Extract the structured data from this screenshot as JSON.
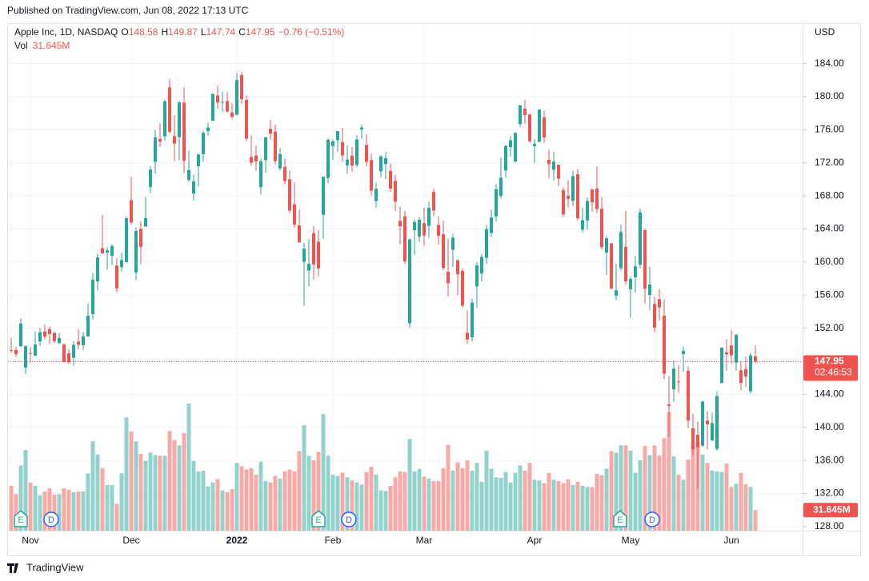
{
  "chart_data": {
    "type": "candlestick",
    "published": "Published on TradingView.com, Jun 08, 2022 17:13 UTC",
    "title": "Apple Inc, 1D, NASDAQ",
    "open_label": "O",
    "high_label": "H",
    "low_label": "L",
    "close_label": "C",
    "change_label": "−0.76 (−0.51%)",
    "volume_label": "Vol",
    "volume_value_label": "31.645M",
    "currency": "USD",
    "countdown": "02:46:53",
    "brand": "TradingView",
    "events": [
      "E",
      "D",
      "E",
      "D",
      "E",
      "D"
    ],
    "up_color": "#26a69a",
    "down_color": "#ef5350",
    "up_volume_color": "#92d2cc",
    "down_volume_color": "#f7a9a7",
    "grid": true,
    "ylim": [
      127.5,
      188.8
    ],
    "yticks": [
      {
        "value": 128,
        "label": "128.00"
      },
      {
        "value": 132,
        "label": "132.00"
      },
      {
        "value": 136,
        "label": "136.00"
      },
      {
        "value": 140,
        "label": "140.00"
      },
      {
        "value": 144,
        "label": "144.00"
      },
      {
        "value": 148,
        "label": "148.00"
      },
      {
        "value": 152,
        "label": "152.00"
      },
      {
        "value": 156,
        "label": "156.00"
      },
      {
        "value": 160,
        "label": "160.00"
      },
      {
        "value": 164,
        "label": "164.00"
      },
      {
        "value": 168,
        "label": "168.00"
      },
      {
        "value": 172,
        "label": "172.00"
      },
      {
        "value": 176,
        "label": "176.00"
      },
      {
        "value": 180,
        "label": "180.00"
      },
      {
        "value": 184,
        "label": "184.00"
      }
    ],
    "categories": [
      null,
      null,
      null,
      null,
      "Nov",
      null,
      null,
      null,
      null,
      null,
      null,
      null,
      null,
      null,
      null,
      null,
      null,
      null,
      null,
      null,
      null,
      null,
      null,
      null,
      null,
      "Dec",
      null,
      null,
      null,
      null,
      null,
      null,
      null,
      null,
      null,
      null,
      null,
      null,
      null,
      null,
      null,
      null,
      null,
      null,
      null,
      null,
      null,
      "2022",
      null,
      null,
      null,
      null,
      null,
      null,
      null,
      null,
      null,
      null,
      null,
      null,
      null,
      null,
      null,
      null,
      null,
      null,
      null,
      "Feb",
      null,
      null,
      null,
      null,
      null,
      null,
      null,
      null,
      null,
      null,
      null,
      null,
      null,
      null,
      null,
      null,
      null,
      null,
      "Mar",
      null,
      null,
      null,
      null,
      null,
      null,
      null,
      null,
      null,
      null,
      null,
      null,
      null,
      null,
      null,
      null,
      null,
      null,
      null,
      null,
      null,
      null,
      "Apr",
      null,
      null,
      null,
      null,
      null,
      null,
      null,
      null,
      null,
      null,
      null,
      null,
      null,
      null,
      null,
      null,
      null,
      null,
      null,
      "May",
      null,
      null,
      null,
      null,
      null,
      null,
      null,
      null,
      null,
      null,
      null,
      null,
      null,
      null,
      null,
      null,
      null,
      null,
      null,
      null,
      "Jun",
      null,
      null,
      null,
      null,
      null
    ],
    "open": [
      149.33,
      149.36,
      149.82,
      147.22,
      148.99,
      148.66,
      150.39,
      151.58,
      151.89,
      151.41,
      150.2,
      150.02,
      148.96,
      148.43,
      150.37,
      149.94,
      151.0,
      153.71,
      157.65,
      161.68,
      161.12,
      160.75,
      159.57,
      159.37,
      159.99,
      167.48,
      158.74,
      164.02,
      164.29,
      169.08,
      172.13,
      174.91,
      175.21,
      181.12,
      175.25,
      175.11,
      179.28,
      169.93,
      168.28,
      171.56,
      173.04,
      175.85,
      177.09,
      180.16,
      179.33,
      179.47,
      178.09,
      177.83,
      182.63,
      179.61,
      172.7,
      172.89,
      169.08,
      172.32,
      176.12,
      175.78,
      171.34,
      171.51,
      170.0,
      166.98,
      164.42,
      160.02,
      158.98,
      163.5,
      162.45,
      165.71,
      170.16,
      174.01,
      174.75,
      174.48,
      171.68,
      172.86,
      171.73,
      176.05,
      174.14,
      172.33,
      167.37,
      170.97,
      171.85,
      171.03,
      169.82,
      164.98,
      165.54,
      152.58,
      163.84,
      163.06,
      164.7,
      164.39,
      168.47,
      164.49,
      163.36,
      158.82,
      161.48,
      160.2,
      158.93,
      151.45,
      150.9,
      157.05,
      158.61,
      160.51,
      163.51,
      165.51,
      167.99,
      171.06,
      173.88,
      172.17,
      176.69,
      178.55,
      177.84,
      174.03,
      174.57,
      177.5,
      172.36,
      171.16,
      171.78,
      168.71,
      168.02,
      167.39,
      170.62,
      163.92,
      165.02,
      168.76,
      168.91,
      166.46,
      161.12,
      162.25,
      155.91,
      159.25,
      161.84,
      156.71,
      158.15,
      159.67,
      163.85,
      156.01,
      154.93,
      155.52,
      153.5,
      142.77,
      144.59,
      145.55,
      148.86,
      146.85,
      139.88,
      139.09,
      137.79,
      140.81,
      138.43,
      137.39,
      145.39,
      149.07,
      149.9,
      147.83,
      146.9,
      147.03,
      144.35,
      148.58
    ],
    "high": [
      150.84,
      149.73,
      153.17,
      149.94,
      149.7,
      151.57,
      151.97,
      152.43,
      152.2,
      151.57,
      151.43,
      150.13,
      149.43,
      150.4,
      151.88,
      151.49,
      155.0,
      158.67,
      161.02,
      165.7,
      161.8,
      162.14,
      160.45,
      161.19,
      165.52,
      170.3,
      164.2,
      164.96,
      167.88,
      171.58,
      175.96,
      176.75,
      179.63,
      182.13,
      177.74,
      179.5,
      181.14,
      173.47,
      170.58,
      173.2,
      175.86,
      176.85,
      180.42,
      181.33,
      180.63,
      180.57,
      179.23,
      182.88,
      182.94,
      180.17,
      175.3,
      174.14,
      172.5,
      175.18,
      177.18,
      176.62,
      173.78,
      172.54,
      171.08,
      169.68,
      166.33,
      162.3,
      162.76,
      164.39,
      163.84,
      170.35,
      175.0,
      174.84,
      175.88,
      176.24,
      174.1,
      173.95,
      175.35,
      176.65,
      175.48,
      173.08,
      169.58,
      172.95,
      173.34,
      171.91,
      170.54,
      166.69,
      166.15,
      162.85,
      165.12,
      165.42,
      166.6,
      167.36,
      168.91,
      165.55,
      165.02,
      162.88,
      163.41,
      160.39,
      159.28,
      154.12,
      155.57,
      160.0,
      161.0,
      164.48,
      166.35,
      169.42,
      172.64,
      174.14,
      175.28,
      175.73,
      179.01,
      179.61,
      178.03,
      174.88,
      178.49,
      178.3,
      173.63,
      173.36,
      171.78,
      169.03,
      169.87,
      171.04,
      171.27,
      166.6,
      167.82,
      168.88,
      171.53,
      167.87,
      163.17,
      162.34,
      159.79,
      164.52,
      166.2,
      158.23,
      160.71,
      166.48,
      164.08,
      159.44,
      155.83,
      156.74,
      155.45,
      146.2,
      148.1,
      147.52,
      149.77,
      147.36,
      141.66,
      140.7,
      143.26,
      141.97,
      141.79,
      144.34,
      149.68,
      150.66,
      151.74,
      151.27,
      147.97,
      148.57,
      149.0,
      149.87
    ],
    "low": [
      149.01,
      148.49,
      149.72,
      146.41,
      147.8,
      148.65,
      149.82,
      150.64,
      150.06,
      150.16,
      150.06,
      147.85,
      147.68,
      147.48,
      149.43,
      149.34,
      150.99,
      153.05,
      156.53,
      161.0,
      159.06,
      159.64,
      156.36,
      158.79,
      159.92,
      164.53,
      157.8,
      159.72,
      164.28,
      168.34,
      170.7,
      173.92,
      174.69,
      175.53,
      172.21,
      172.31,
      170.75,
      169.69,
      167.46,
      169.12,
      172.15,
      175.27,
      177.07,
      178.53,
      178.14,
      178.09,
      177.26,
      177.71,
      179.12,
      174.64,
      171.64,
      171.03,
      168.17,
      170.82,
      174.82,
      171.79,
      171.09,
      169.41,
      165.94,
      164.18,
      162.3,
      154.7,
      157.02,
      157.82,
      158.28,
      162.8,
      169.51,
      172.31,
      173.33,
      172.12,
      170.68,
      170.95,
      171.43,
      174.9,
      171.55,
      168.04,
      166.56,
      170.25,
      170.05,
      168.47,
      166.19,
      162.15,
      159.75,
      152.0,
      160.87,
      162.43,
      161.97,
      162.95,
      165.55,
      162.1,
      159.04,
      155.8,
      159.41,
      155.98,
      154.5,
      150.1,
      150.38,
      154.46,
      157.63,
      159.76,
      163.01,
      164.91,
      167.65,
      170.21,
      172.75,
      172.0,
      176.34,
      176.7,
      174.4,
      171.94,
      174.44,
      174.42,
      170.13,
      169.85,
      169.2,
      165.5,
      166.64,
      166.77,
      165.04,
      163.57,
      163.91,
      166.1,
      165.91,
      161.5,
      158.46,
      156.72,
      155.38,
      158.93,
      157.25,
      153.27,
      156.32,
      159.26,
      154.95,
      154.18,
      151.49,
      152.93,
      145.81,
      138.8,
      143.11,
      144.18,
      146.68,
      139.9,
      136.6,
      132.61,
      137.65,
      137.33,
      138.34,
      137.14,
      145.26,
      146.84,
      147.68,
      146.86,
      144.46,
      144.9,
      144.1,
      147.74
    ],
    "close": [
      149.32,
      148.85,
      152.57,
      149.8,
      148.96,
      150.02,
      151.49,
      150.96,
      151.28,
      150.44,
      150.81,
      147.92,
      147.87,
      149.99,
      150.0,
      151.0,
      153.49,
      157.87,
      160.55,
      161.02,
      161.41,
      161.94,
      156.81,
      160.24,
      165.3,
      164.77,
      163.76,
      161.84,
      165.32,
      171.18,
      175.08,
      174.56,
      179.45,
      175.74,
      174.33,
      179.3,
      172.26,
      171.14,
      169.75,
      172.99,
      175.64,
      176.28,
      180.33,
      179.29,
      179.38,
      178.2,
      177.57,
      182.01,
      179.7,
      174.92,
      172.0,
      172.17,
      172.19,
      175.08,
      175.53,
      172.19,
      173.07,
      169.8,
      166.23,
      164.51,
      162.41,
      161.62,
      159.78,
      159.69,
      159.22,
      170.33,
      174.78,
      174.61,
      175.84,
      172.9,
      172.39,
      171.66,
      174.83,
      176.28,
      172.12,
      168.64,
      168.88,
      172.79,
      172.55,
      168.88,
      167.3,
      164.32,
      160.07,
      162.74,
      164.85,
      165.12,
      163.2,
      166.56,
      166.23,
      163.17,
      159.3,
      157.44,
      162.95,
      158.52,
      154.73,
      150.62,
      155.09,
      159.59,
      160.62,
      163.98,
      165.38,
      168.82,
      170.21,
      174.07,
      174.72,
      175.6,
      178.96,
      177.77,
      174.61,
      174.31,
      178.44,
      175.06,
      171.83,
      172.14,
      170.09,
      165.75,
      167.66,
      170.4,
      165.29,
      165.07,
      167.4,
      167.23,
      166.42,
      161.79,
      162.88,
      156.8,
      156.57,
      163.64,
      157.65,
      157.96,
      159.48,
      166.02,
      156.77,
      157.28,
      152.06,
      154.51,
      146.5,
      142.56,
      147.11,
      145.54,
      149.24,
      140.82,
      137.35,
      137.59,
      143.11,
      140.36,
      140.52,
      143.78,
      149.64,
      148.84,
      148.71,
      151.21,
      145.38,
      146.14,
      148.71,
      147.95
    ],
    "volume": [
      69,
      56,
      100,
      124,
      74,
      69,
      54,
      60,
      65,
      55,
      56,
      65,
      63,
      59,
      60,
      60,
      88,
      137,
      117,
      96,
      70,
      70,
      41,
      88,
      174,
      152,
      137,
      118,
      107,
      120,
      116,
      115,
      115,
      153,
      139,
      131,
      150,
      195,
      107,
      91,
      92,
      68,
      74,
      79,
      62,
      59,
      64,
      104,
      99,
      94,
      96,
      86,
      106,
      76,
      74,
      84,
      80,
      91,
      94,
      91,
      122,
      162,
      115,
      108,
      121,
      179,
      115,
      86,
      84,
      89,
      82,
      77,
      74,
      71,
      90,
      98,
      86,
      62,
      61,
      69,
      82,
      91,
      90,
      141,
      91,
      95,
      83,
      80,
      76,
      76,
      96,
      132,
      92,
      105,
      96,
      108,
      92,
      104,
      75,
      123,
      95,
      82,
      81,
      90,
      74,
      89,
      100,
      92,
      104,
      78,
      77,
      73,
      89,
      78,
      76,
      73,
      79,
      70,
      75,
      69,
      67,
      67,
      87,
      85,
      95,
      122,
      120,
      131,
      131,
      123,
      89,
      108,
      130,
      116,
      131,
      115,
      142,
      182,
      114,
      86,
      78,
      109,
      136,
      137,
      117,
      104,
      92,
      91,
      90,
      103,
      67,
      72,
      89,
      71,
      67,
      31.645
    ]
  }
}
